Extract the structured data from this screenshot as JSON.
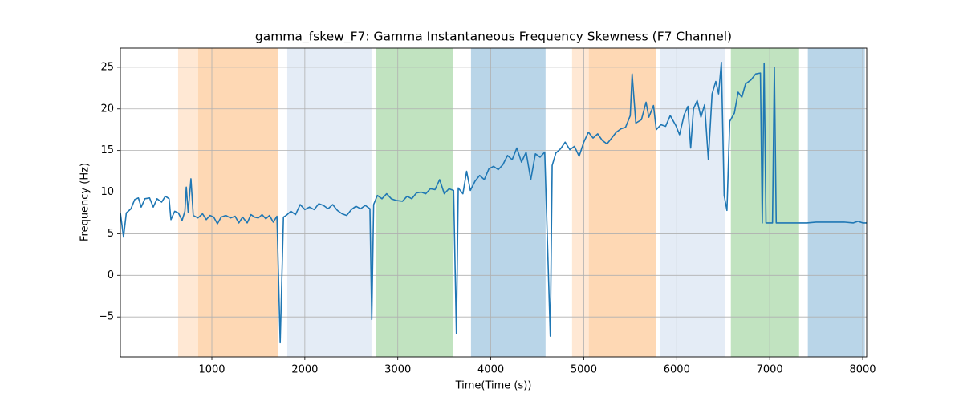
{
  "chart_data": {
    "type": "line",
    "title": "gamma_fskew_F7: Gamma Instantaneous Frequency Skewness (F7 Channel)",
    "xlabel": "Time(Time (s))",
    "ylabel": "Frequency (Hz)",
    "color": "#1f77b4",
    "grid": true,
    "xlim": [
      16,
      8043
    ],
    "ylim": [
      -9.8,
      27.3
    ],
    "xticks": [
      1000,
      2000,
      3000,
      4000,
      5000,
      6000,
      7000,
      8000
    ],
    "yticks": [
      {
        "value": -5,
        "label": "−5"
      },
      0,
      5,
      10,
      15,
      20,
      25
    ],
    "spans": [
      {
        "xmin": 637,
        "xmax": 1716,
        "color": "#ffe8d4"
      },
      {
        "xmin": 853,
        "xmax": 1716,
        "color": "#fed8b4"
      },
      {
        "xmin": 1811,
        "xmax": 2717,
        "color": "#e4ecf6"
      },
      {
        "xmin": 2768,
        "xmax": 3597,
        "color": "#c1e3c0"
      },
      {
        "xmin": 3787,
        "xmax": 4589,
        "color": "#b9d5e8"
      },
      {
        "xmin": 4874,
        "xmax": 5780,
        "color": "#ffe8d4"
      },
      {
        "xmin": 5055,
        "xmax": 5780,
        "color": "#fed8b4"
      },
      {
        "xmin": 5823,
        "xmax": 6522,
        "color": "#e4ecf6"
      },
      {
        "xmin": 6582,
        "xmax": 7316,
        "color": "#c1e3c0"
      },
      {
        "xmin": 7410,
        "xmax": 8023,
        "color": "#b9d5e8"
      }
    ],
    "x": [
      16,
      50,
      80,
      130,
      170,
      210,
      240,
      280,
      330,
      370,
      410,
      460,
      500,
      540,
      560,
      600,
      640,
      680,
      710,
      725,
      745,
      775,
      800,
      850,
      900,
      940,
      980,
      1020,
      1060,
      1100,
      1150,
      1200,
      1250,
      1290,
      1330,
      1380,
      1420,
      1460,
      1500,
      1540,
      1580,
      1620,
      1660,
      1700,
      1735,
      1770,
      1800,
      1850,
      1900,
      1950,
      2000,
      2050,
      2100,
      2150,
      2200,
      2250,
      2300,
      2350,
      2400,
      2450,
      2500,
      2550,
      2600,
      2650,
      2700,
      2720,
      2740,
      2780,
      2830,
      2880,
      2930,
      2980,
      3050,
      3100,
      3150,
      3200,
      3250,
      3300,
      3350,
      3400,
      3450,
      3500,
      3550,
      3600,
      3630,
      3650,
      3700,
      3740,
      3780,
      3830,
      3880,
      3930,
      3980,
      4030,
      4080,
      4130,
      4180,
      4230,
      4280,
      4330,
      4380,
      4430,
      4480,
      4530,
      4580,
      4640,
      4660,
      4700,
      4750,
      4800,
      4850,
      4900,
      4950,
      5000,
      5050,
      5100,
      5150,
      5200,
      5250,
      5300,
      5350,
      5400,
      5450,
      5500,
      5520,
      5560,
      5620,
      5670,
      5700,
      5750,
      5780,
      5830,
      5880,
      5930,
      5990,
      6030,
      6080,
      6120,
      6150,
      6180,
      6220,
      6260,
      6300,
      6340,
      6380,
      6420,
      6450,
      6480,
      6510,
      6540,
      6570,
      6620,
      6660,
      6700,
      6740,
      6800,
      6850,
      6900,
      6920,
      6940,
      6960,
      7030,
      7050,
      7070,
      7200,
      7400,
      7500,
      7800,
      7900,
      7950,
      8000,
      8043
    ],
    "values": [
      7.5,
      4.6,
      7.5,
      8,
      9.1,
      9.3,
      8.2,
      9.2,
      9.3,
      8.2,
      9.2,
      8.8,
      9.5,
      9.2,
      6.7,
      7.7,
      7.5,
      6.6,
      7.7,
      10.6,
      7.6,
      11.6,
      7.2,
      6.9,
      7.4,
      6.7,
      7.2,
      7.0,
      6.2,
      7.0,
      7.2,
      6.9,
      7.1,
      6.3,
      7.0,
      6.3,
      7.3,
      7.0,
      6.9,
      7.3,
      6.8,
      7.2,
      6.4,
      7.1,
      -8.1,
      7.0,
      7.2,
      7.7,
      7.3,
      8.5,
      7.9,
      8.2,
      7.9,
      8.6,
      8.4,
      8.0,
      8.5,
      7.8,
      7.4,
      7.2,
      7.9,
      8.3,
      8.0,
      8.4,
      8.0,
      -5.3,
      8.5,
      9.6,
      9.2,
      9.8,
      9.2,
      9.0,
      8.9,
      9.5,
      9.2,
      9.9,
      10.0,
      9.8,
      10.4,
      10.3,
      11.5,
      9.8,
      10.4,
      10.2,
      -7.0,
      10.5,
      9.8,
      12.5,
      10.2,
      11.3,
      12.0,
      11.5,
      12.8,
      13.1,
      12.7,
      13.3,
      14.4,
      13.9,
      15.3,
      13.6,
      14.8,
      11.5,
      14.6,
      14.2,
      14.8,
      -7.3,
      13.2,
      14.7,
      15.2,
      16.0,
      15.1,
      15.5,
      14.3,
      16.0,
      17.2,
      16.5,
      17.0,
      16.2,
      15.8,
      16.5,
      17.2,
      17.6,
      17.8,
      19.2,
      24.2,
      18.3,
      18.7,
      20.8,
      19.0,
      20.4,
      17.5,
      18.1,
      17.9,
      19.2,
      18.0,
      16.9,
      19.3,
      20.3,
      15.3,
      20.0,
      21.0,
      19.0,
      20.5,
      13.9,
      21.8,
      23.3,
      21.8,
      25.6,
      9.6,
      7.8,
      18.5,
      19.5,
      22.0,
      21.4,
      23.0,
      23.5,
      24.2,
      24.3,
      6.3,
      25.5,
      6.3,
      6.3,
      25.0,
      6.3,
      6.3,
      6.3,
      6.4,
      6.4,
      6.3,
      6.5,
      6.3,
      6.3
    ]
  }
}
